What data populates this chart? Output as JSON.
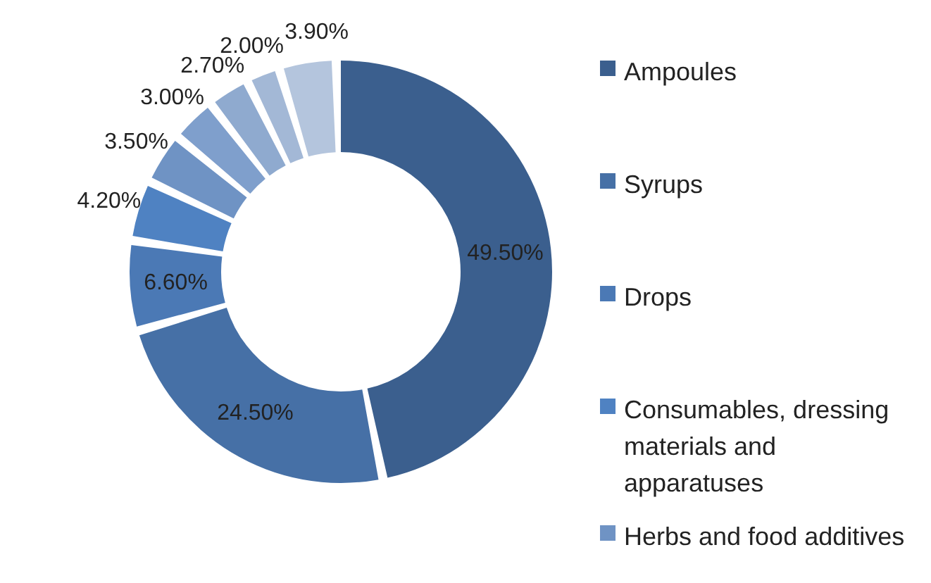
{
  "chart_data": {
    "type": "donut",
    "categories": [
      "Ampoules",
      "Syrups",
      "Drops",
      "Consumables, dressing materials and apparatuses",
      "Herbs and food additives",
      null,
      null,
      null,
      null
    ],
    "values": [
      49.5,
      24.5,
      6.6,
      4.2,
      3.5,
      3.0,
      2.7,
      2.0,
      3.9
    ],
    "value_labels": [
      "49.50%",
      "24.50%",
      "6.60%",
      "4.20%",
      "3.50%",
      "3.00%",
      "2.70%",
      "2.00%",
      "3.90%"
    ],
    "colors": [
      "#3b5f8e",
      "#4670a6",
      "#4b79b5",
      "#4f82c2",
      "#6f93c4",
      "#7f9fcc",
      "#8faacf",
      "#a3b8d6",
      "#b4c5dd"
    ],
    "legend": "right"
  }
}
